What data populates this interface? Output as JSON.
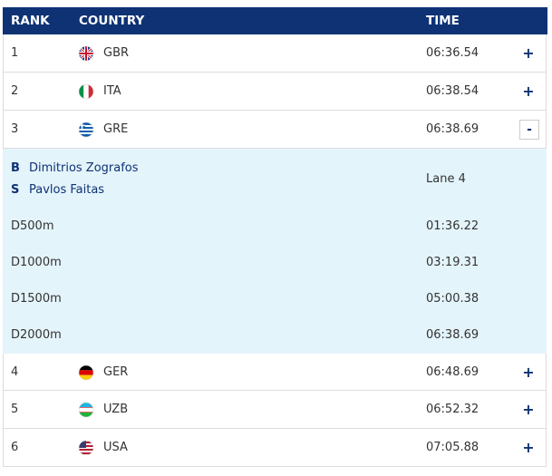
{
  "header": {
    "rank": "RANK",
    "country": "COUNTRY",
    "time": "TIME"
  },
  "rows": [
    {
      "rank": "1",
      "country": "GBR",
      "time": "06:36.54",
      "toggle": "+"
    },
    {
      "rank": "2",
      "country": "ITA",
      "time": "06:38.54",
      "toggle": "+"
    },
    {
      "rank": "3",
      "country": "GRE",
      "time": "06:38.69",
      "toggle": "-"
    },
    {
      "rank": "4",
      "country": "GER",
      "time": "06:48.69",
      "toggle": "+"
    },
    {
      "rank": "5",
      "country": "UZB",
      "time": "06:52.32",
      "toggle": "+"
    },
    {
      "rank": "6",
      "country": "USA",
      "time": "07:05.88",
      "toggle": "+"
    }
  ],
  "expanded": {
    "crew": [
      {
        "role": "B",
        "name": "Dimitrios Zografos"
      },
      {
        "role": "S",
        "name": "Pavlos Faitas"
      }
    ],
    "lane": "Lane 4",
    "splits": [
      {
        "label": "D500m",
        "time": "01:36.22"
      },
      {
        "label": "D1000m",
        "time": "03:19.31"
      },
      {
        "label": "D1500m",
        "time": "05:00.38"
      },
      {
        "label": "D2000m",
        "time": "06:38.69"
      }
    ]
  }
}
